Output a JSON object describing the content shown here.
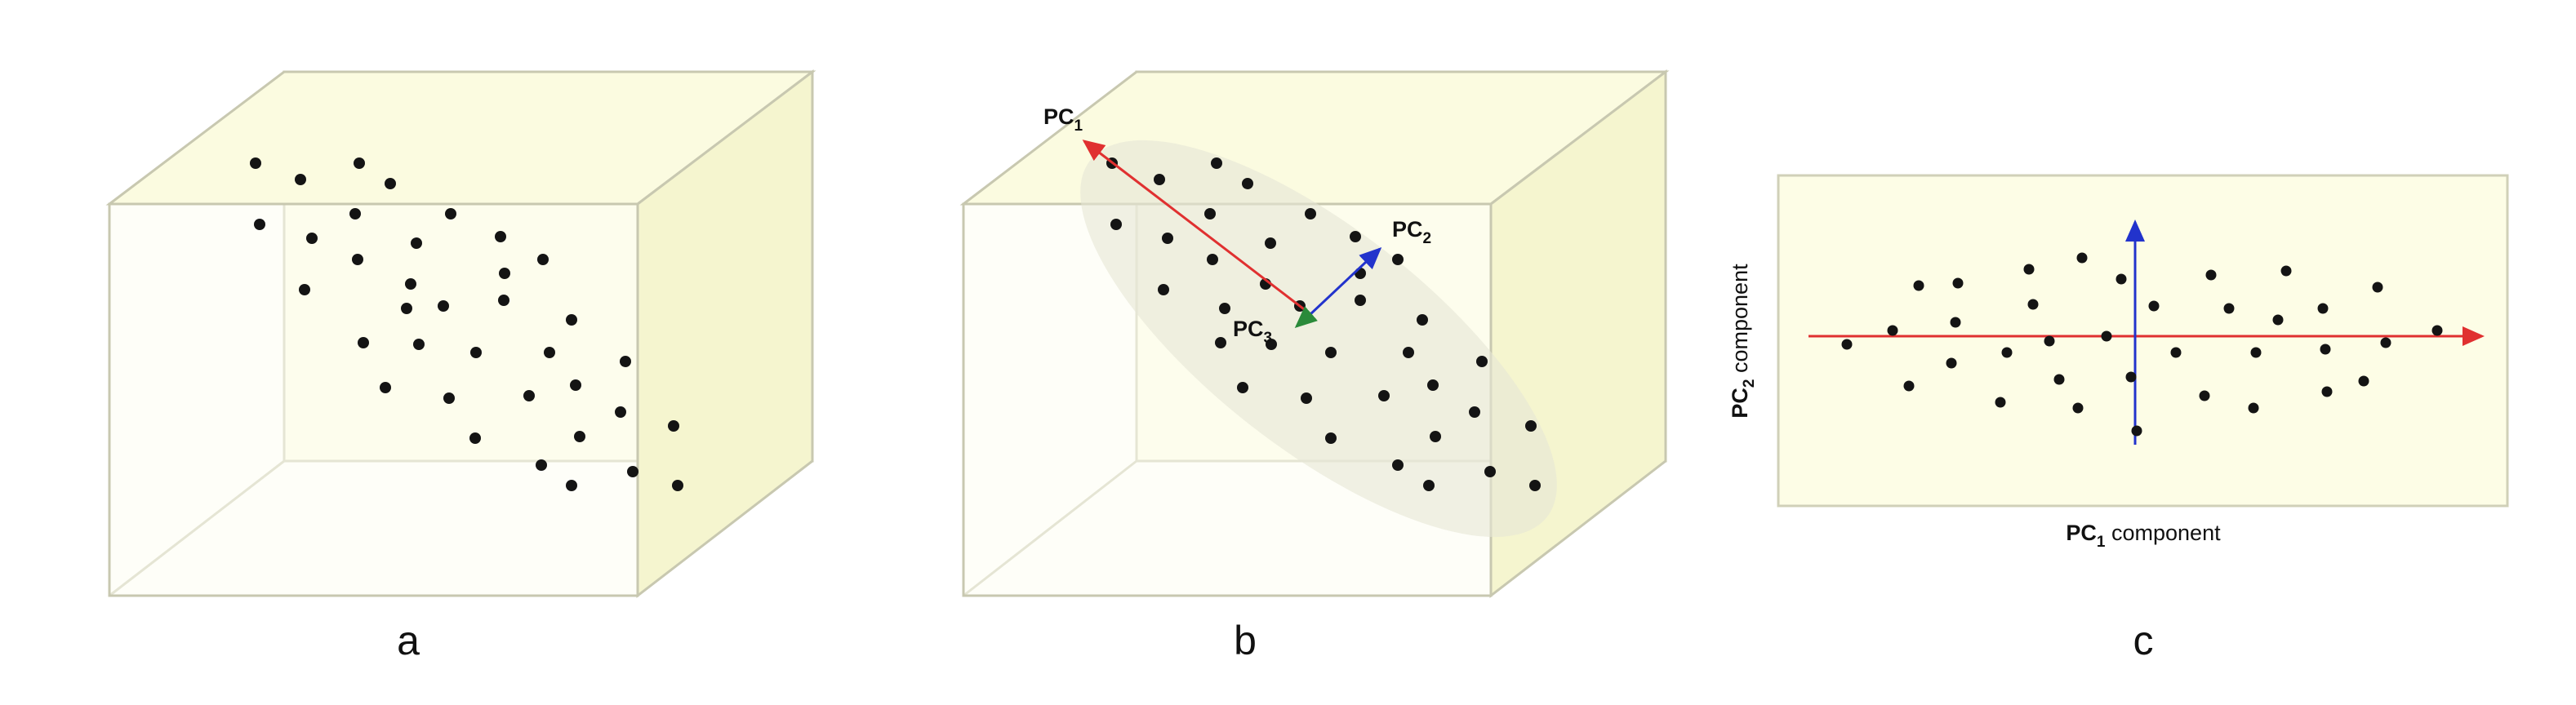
{
  "colors": {
    "cube_face": "#fdfde6",
    "cube_side": "#f5f5cf",
    "cube_edge": "#c8c8b0",
    "point": "#141414",
    "pc1_arrow": "#e03030",
    "pc2_arrow": "#2233cc",
    "pc3_arrow": "#2a8a3a",
    "ellipse": "#e8e8d8"
  },
  "panels": {
    "a": {
      "letter": "a"
    },
    "b": {
      "letter": "b",
      "pc1": {
        "main": "PC",
        "sub": "1"
      },
      "pc2": {
        "main": "PC",
        "sub": "2"
      },
      "pc3": {
        "main": "PC",
        "sub": "3"
      }
    },
    "c": {
      "letter": "c",
      "xlabel": {
        "main": "PC",
        "sub": "1",
        "rest": " component"
      },
      "ylabel": {
        "main": "PC",
        "sub": "2",
        "rest": " component"
      }
    }
  }
}
